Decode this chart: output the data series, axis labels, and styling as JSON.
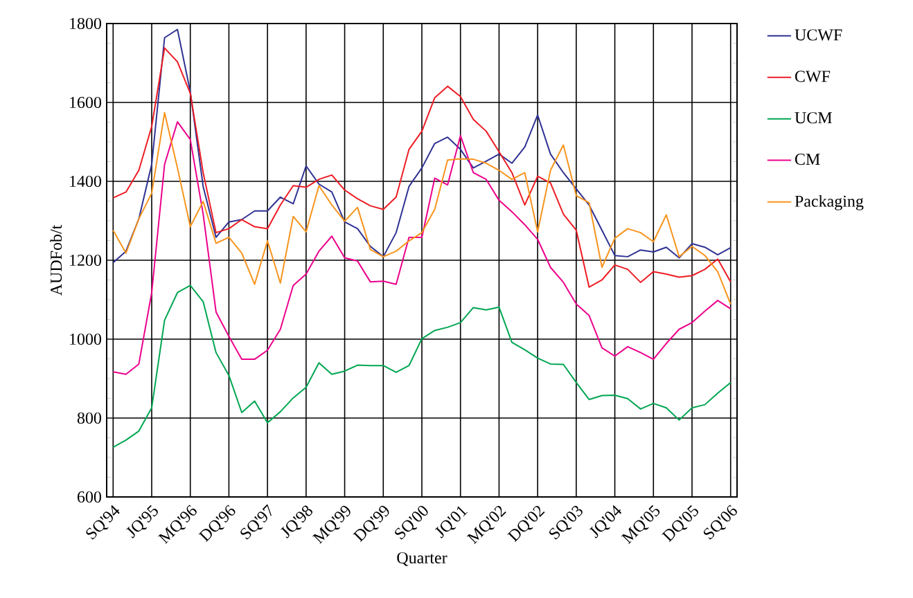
{
  "chart_data": {
    "type": "line",
    "xlabel": "Quarter",
    "ylabel": "AUDFob/t",
    "categories": [
      "SQ'94",
      null,
      null,
      "JQ'95",
      null,
      null,
      "MQ'96",
      null,
      null,
      "DQ'96",
      null,
      null,
      "SQ'97",
      null,
      null,
      "JQ'98",
      null,
      null,
      "MQ'99",
      null,
      null,
      "DQ'99",
      null,
      null,
      "SQ'00",
      null,
      null,
      "JQ'01",
      null,
      null,
      "MQ'02",
      null,
      null,
      "DQ'02",
      null,
      null,
      "SQ'03",
      null,
      null,
      "JQ'04",
      null,
      null,
      "MQ'05",
      null,
      null,
      "DQ'05",
      null,
      null,
      "SQ'06"
    ],
    "ylim": [
      600,
      1800
    ],
    "yticks": [
      600,
      800,
      1000,
      1200,
      1400,
      1600,
      1800
    ],
    "grid": true,
    "legend": "right",
    "marker": "none",
    "line_style": "solid",
    "series": [
      {
        "name": "UCWF",
        "color": "#2e3192",
        "values": [
          1194,
          1223,
          1305,
          1443,
          1764,
          1785,
          1627,
          1387,
          1258,
          1297,
          1303,
          1325,
          1325,
          1360,
          1343,
          1439,
          1393,
          1373,
          1297,
          1280,
          1235,
          1209,
          1270,
          1387,
          1434,
          1496,
          1512,
          1481,
          1434,
          1451,
          1469,
          1446,
          1487,
          1568,
          1469,
          1422,
          1381,
          1340,
          1276,
          1212,
          1209,
          1226,
          1221,
          1233,
          1206,
          1242,
          1233,
          1214,
          1232
        ]
      },
      {
        "name": "CWF",
        "color": "#ed1c24",
        "values": [
          1358,
          1373,
          1428,
          1539,
          1738,
          1703,
          1623,
          1422,
          1270,
          1280,
          1303,
          1285,
          1280,
          1340,
          1389,
          1385,
          1405,
          1416,
          1378,
          1356,
          1338,
          1329,
          1360,
          1481,
          1527,
          1612,
          1641,
          1615,
          1557,
          1527,
          1475,
          1422,
          1340,
          1413,
          1396,
          1317,
          1276,
          1132,
          1150,
          1188,
          1177,
          1144,
          1171,
          1165,
          1157,
          1161,
          1177,
          1203,
          1145
        ]
      },
      {
        "name": "UCM",
        "color": "#00a651",
        "values": [
          726,
          744,
          767,
          826,
          1048,
          1118,
          1136,
          1095,
          966,
          908,
          814,
          843,
          788,
          816,
          851,
          878,
          940,
          911,
          919,
          934,
          933,
          933,
          916,
          933,
          1001,
          1022,
          1030,
          1042,
          1080,
          1074,
          1081,
          992,
          973,
          952,
          937,
          936,
          890,
          847,
          857,
          858,
          849,
          823,
          837,
          826,
          795,
          826,
          834,
          863,
          890
        ]
      },
      {
        "name": "CM",
        "color": "#ec008c",
        "values": [
          917,
          911,
          937,
          1118,
          1443,
          1551,
          1506,
          1317,
          1069,
          1007,
          949,
          949,
          972,
          1025,
          1136,
          1165,
          1223,
          1261,
          1206,
          1198,
          1145,
          1147,
          1139,
          1258,
          1258,
          1408,
          1391,
          1516,
          1422,
          1405,
          1352,
          1323,
          1290,
          1253,
          1182,
          1144,
          1089,
          1060,
          978,
          957,
          981,
          966,
          949,
          989,
          1025,
          1042,
          1071,
          1098,
          1077
        ]
      },
      {
        "name": "Packaging",
        "color": "#f7941d",
        "values": [
          1276,
          1218,
          1305,
          1370,
          1574,
          1434,
          1285,
          1349,
          1243,
          1258,
          1218,
          1139,
          1249,
          1142,
          1311,
          1272,
          1389,
          1340,
          1299,
          1334,
          1227,
          1209,
          1223,
          1249,
          1270,
          1329,
          1454,
          1457,
          1456,
          1446,
          1428,
          1405,
          1422,
          1272,
          1428,
          1492,
          1364,
          1346,
          1182,
          1256,
          1280,
          1270,
          1247,
          1315,
          1209,
          1235,
          1212,
          1171,
          1089
        ]
      }
    ]
  }
}
